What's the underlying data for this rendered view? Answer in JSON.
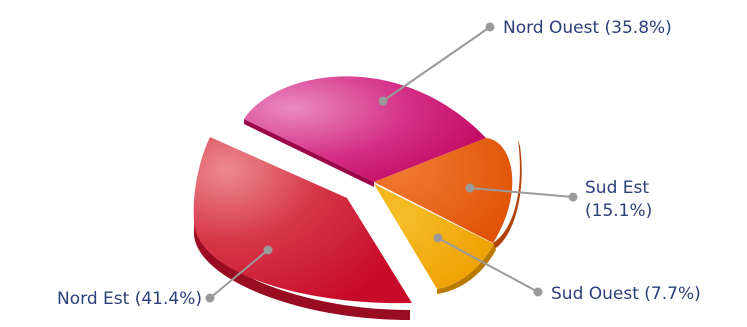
{
  "chart_data": {
    "type": "pie",
    "style": "3d-exploded",
    "slices": [
      {
        "label": "Nord Ouest (35.8%)",
        "value": 35.8,
        "color": "#c8086a"
      },
      {
        "label": "Sud Est",
        "label2": "(15.1%)",
        "value": 15.1,
        "color": "#e45a0c"
      },
      {
        "label": "Sud Ouest (7.7%)",
        "value": 7.7,
        "color": "#f2a600"
      },
      {
        "label": "Nord Est (41.4%)",
        "value": 41.4,
        "color": "#cc1031"
      }
    ],
    "exploded": [
      "Nord Est (41.4%)"
    ]
  }
}
